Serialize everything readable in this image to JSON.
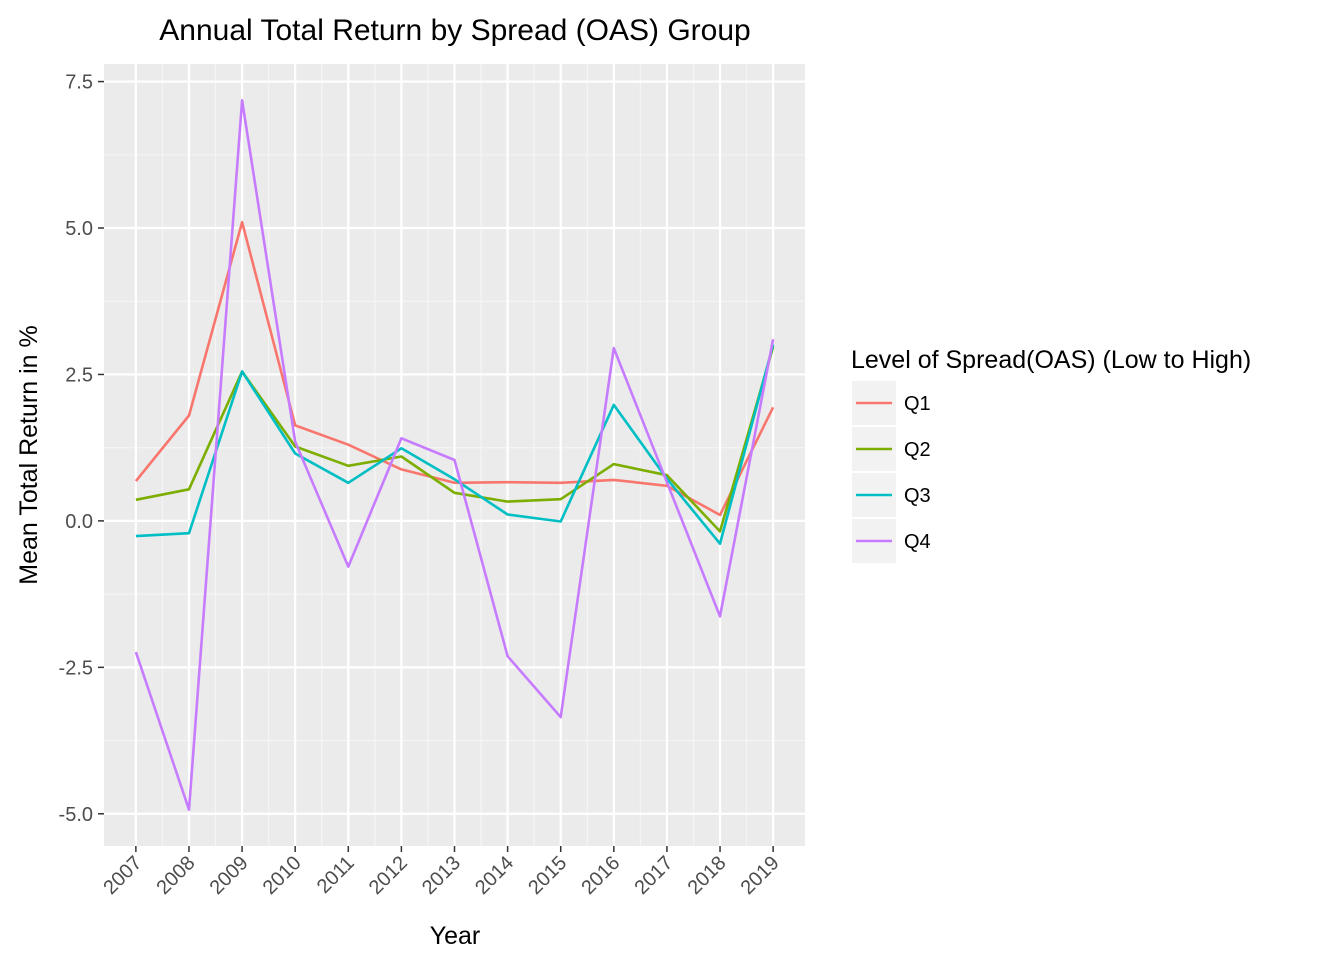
{
  "chart_data": {
    "type": "line",
    "title": "Annual Total Return by Spread (OAS) Group",
    "xlabel": "Year",
    "ylabel": "Mean Total Return in %",
    "x": [
      "2007",
      "2008",
      "2009",
      "2010",
      "2011",
      "2012",
      "2013",
      "2014",
      "2015",
      "2016",
      "2017",
      "2018",
      "2019"
    ],
    "ylim": [
      -5.55,
      7.8
    ],
    "yticks": [
      -5.0,
      -2.5,
      0.0,
      2.5,
      5.0,
      7.5
    ],
    "ytick_labels": [
      "-5.0",
      "-2.5",
      "0.0",
      "2.5",
      "5.0",
      "7.5"
    ],
    "grid": true,
    "legend": {
      "title": "Level of Spread(OAS) (Low to High)",
      "position": "right"
    },
    "series": [
      {
        "name": "Q1",
        "color": "#F8766D",
        "values": [
          0.68,
          1.8,
          5.1,
          1.63,
          1.3,
          0.88,
          0.65,
          0.66,
          0.65,
          0.7,
          0.6,
          0.1,
          1.94
        ]
      },
      {
        "name": "Q2",
        "color": "#7CAE00",
        "values": [
          0.36,
          0.54,
          2.55,
          1.27,
          0.94,
          1.1,
          0.48,
          0.33,
          0.37,
          0.97,
          0.78,
          -0.18,
          2.97
        ]
      },
      {
        "name": "Q3",
        "color": "#00BFC4",
        "values": [
          -0.26,
          -0.21,
          2.55,
          1.15,
          0.65,
          1.24,
          0.71,
          0.11,
          -0.01,
          1.98,
          0.72,
          -0.39,
          3.01
        ]
      },
      {
        "name": "Q4",
        "color": "#C77CFF",
        "values": [
          -2.24,
          -4.93,
          7.18,
          1.35,
          -0.78,
          1.41,
          1.04,
          -2.31,
          -3.35,
          2.95,
          0.66,
          -1.63,
          3.1
        ]
      }
    ]
  }
}
